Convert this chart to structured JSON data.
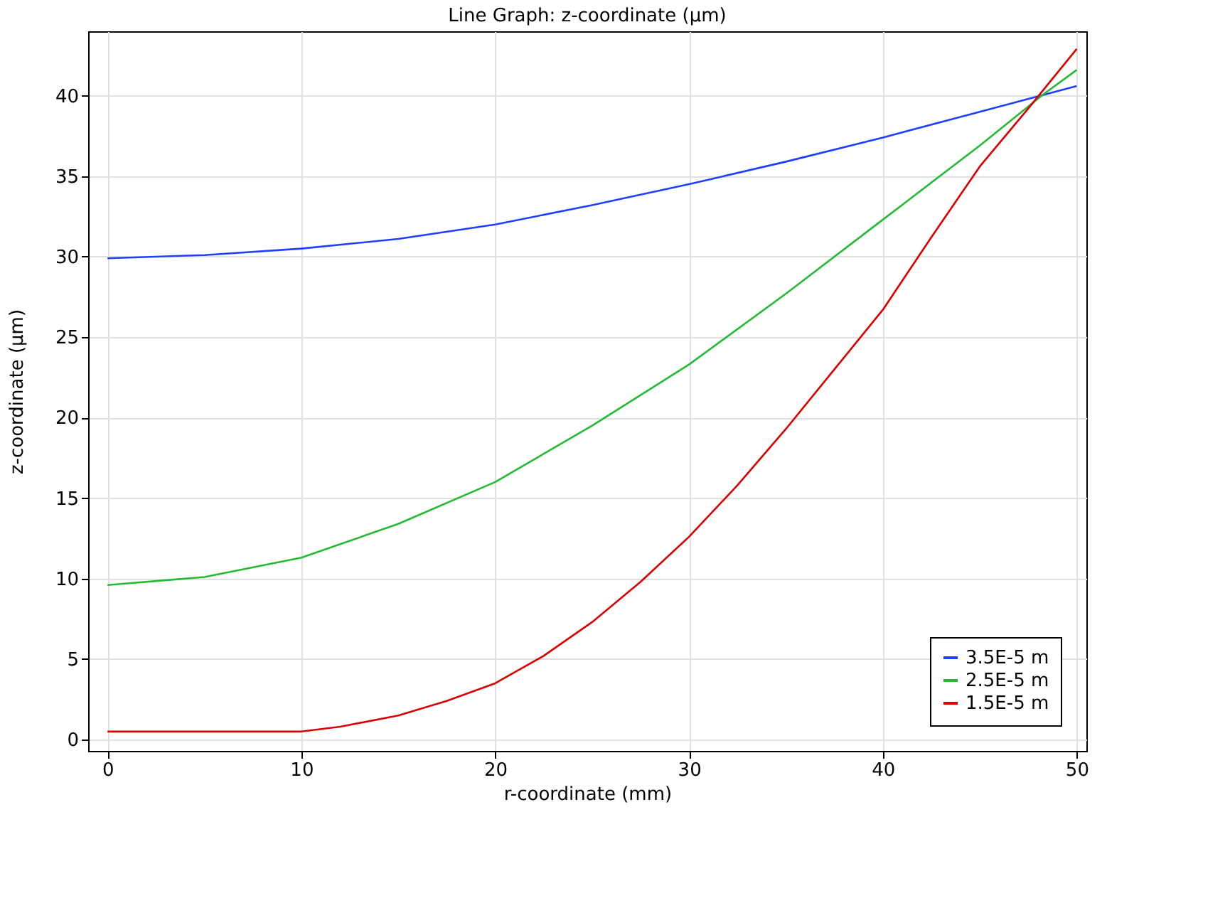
{
  "chart_data": {
    "type": "line",
    "title": "Line Graph: z-coordinate (µm)",
    "xlabel": "r-coordinate (mm)",
    "ylabel": "z-coordinate (µm)",
    "xlim": [
      -1,
      50.5
    ],
    "ylim": [
      -0.7,
      44
    ],
    "xticks": [
      0,
      10,
      20,
      30,
      40,
      50
    ],
    "yticks": [
      0,
      5,
      10,
      15,
      20,
      25,
      30,
      35,
      40
    ],
    "grid": true,
    "legend": "bottom right",
    "line_style": "solid",
    "series": [
      {
        "name": "3.5E-5 m",
        "color": "#1f3fff",
        "x": [
          0,
          5,
          10,
          15,
          20,
          25,
          30,
          35,
          40,
          45,
          50
        ],
        "values": [
          29.9,
          30.1,
          30.5,
          31.1,
          32.0,
          33.2,
          34.5,
          35.9,
          37.4,
          39.0,
          40.6
        ]
      },
      {
        "name": "2.5E-5 m",
        "color": "#22bb33",
        "x": [
          0,
          5,
          10,
          15,
          20,
          25,
          30,
          35,
          40,
          45,
          48.3,
          50
        ],
        "values": [
          9.6,
          10.1,
          11.3,
          13.4,
          16.0,
          19.5,
          23.3,
          27.7,
          32.3,
          36.9,
          40.1,
          41.6
        ]
      },
      {
        "name": "1.5E-5 m",
        "color": "#dd0000",
        "x": [
          0,
          5,
          10,
          12,
          15,
          17.5,
          20,
          22.5,
          25,
          27.5,
          30,
          32.5,
          35,
          37.5,
          40,
          42.5,
          45,
          47.5,
          50
        ],
        "values": [
          0.5,
          0.5,
          0.5,
          0.8,
          1.5,
          2.4,
          3.5,
          5.2,
          7.3,
          9.8,
          12.6,
          15.8,
          19.3,
          23.0,
          26.7,
          31.2,
          35.6,
          39.2,
          42.9
        ]
      }
    ]
  }
}
